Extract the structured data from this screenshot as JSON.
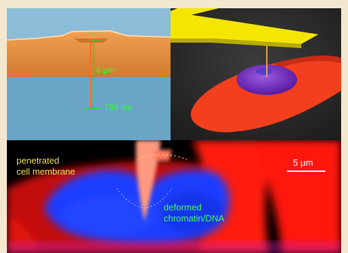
{
  "panel_a": {
    "label_depth": "6 µm",
    "label_width": "180 nm",
    "colors": {
      "substrate": "#6aa5c8",
      "film": "#e0883a",
      "probe": "#ff6a20",
      "scale": "#20e020"
    }
  },
  "panel_b": {
    "colors": {
      "cantilever": "#f4e600",
      "cell": "#f2401e",
      "nucleus": "#7a2fc0",
      "background": "#2a2a2a"
    }
  },
  "panel_c": {
    "label_membrane": "penetrated\ncell membrane",
    "label_chromatin": "deformed\nchromatin/DNA",
    "scale_bar": "5 µm",
    "colors": {
      "membrane": "#ff1a10",
      "chromatin": "#1a3cff",
      "probe": "#ff9a80",
      "text_yellow": "#f1e35a",
      "text_green": "#3cff5a"
    }
  }
}
